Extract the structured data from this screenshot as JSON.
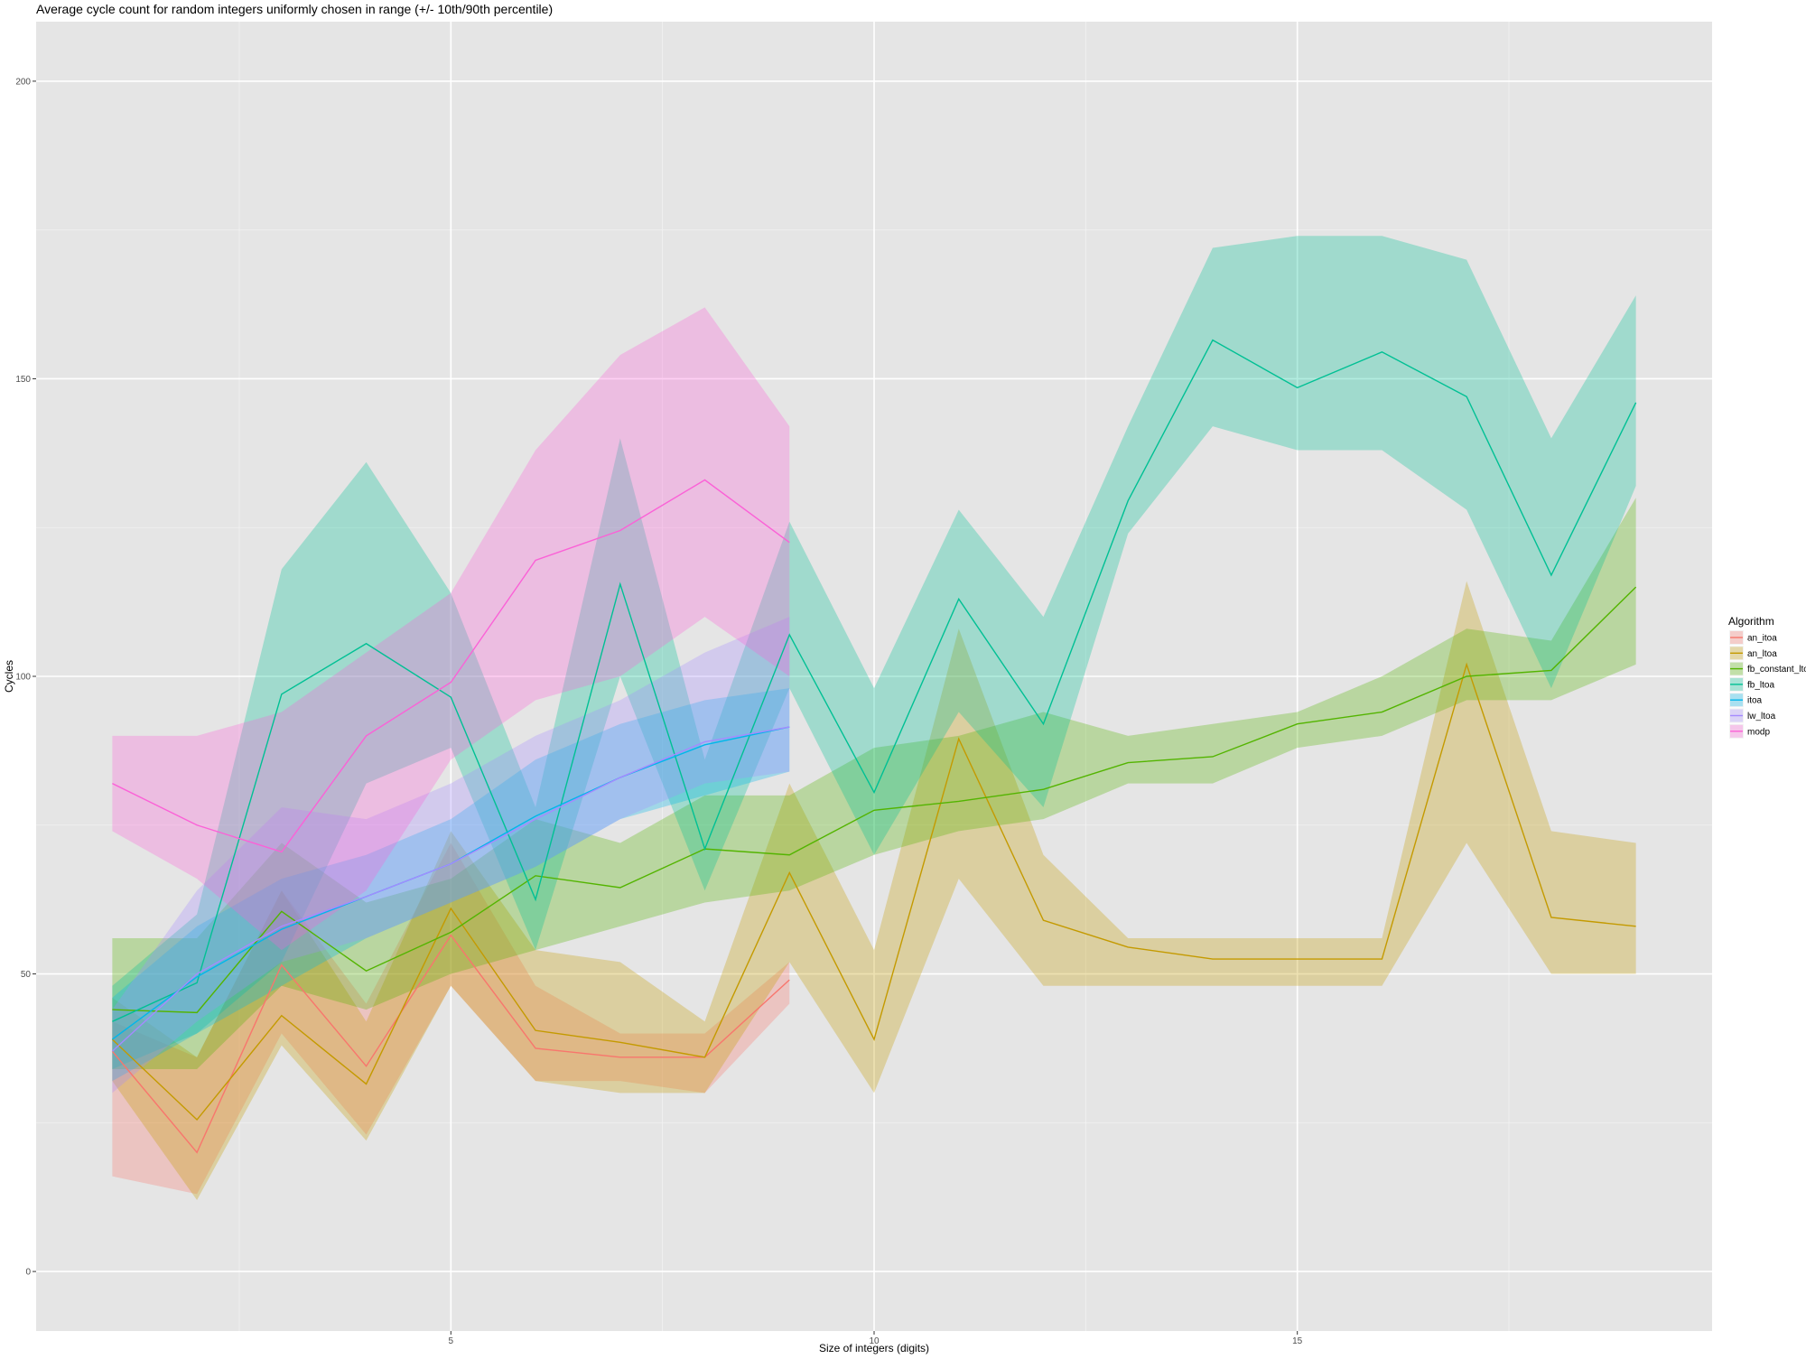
{
  "chart_data": {
    "type": "area",
    "title": "Average cycle count for random integers uniformly chosen in range (+/- 10th/90th percentile)",
    "xlabel": "Size of integers (digits)",
    "ylabel": "Cycles",
    "xlim": [
      0.1,
      19.9
    ],
    "ylim": [
      -10,
      210
    ],
    "x_ticks": [
      5,
      10,
      15
    ],
    "y_ticks": [
      0,
      50,
      100,
      150,
      200
    ],
    "grid": true,
    "legend": {
      "title": "Algorithm",
      "placement": "right"
    },
    "series": [
      {
        "name": "an_itoa",
        "color": "#F8766D",
        "x": [
          1,
          2,
          3,
          4,
          5,
          6,
          7,
          8,
          9
        ],
        "mean": [
          37,
          20,
          51.5,
          34.5,
          56.5,
          37.5,
          36,
          36,
          49
        ],
        "p10": [
          16,
          13,
          40,
          23,
          48,
          32,
          32,
          30,
          45
        ],
        "p90": [
          42,
          36,
          64,
          45,
          72,
          48,
          40,
          40,
          52
        ]
      },
      {
        "name": "an_ltoa",
        "color": "#C49A00",
        "x": [
          1,
          2,
          3,
          4,
          5,
          6,
          7,
          8,
          9,
          10,
          11,
          12,
          13,
          14,
          15,
          16,
          17,
          18,
          19
        ],
        "mean": [
          39,
          25.5,
          43,
          31.5,
          61,
          40.5,
          38.5,
          36,
          67,
          39,
          89.5,
          59,
          54.5,
          52.5,
          52.5,
          52.5,
          102,
          59.5,
          58
        ],
        "p10": [
          32,
          12,
          38,
          22,
          48,
          32,
          30,
          30,
          52,
          30,
          66,
          48,
          48,
          48,
          48,
          48,
          72,
          50,
          50
        ],
        "p90": [
          46,
          36,
          64,
          42,
          74,
          54,
          52,
          42,
          82,
          54,
          108,
          70,
          56,
          56,
          56,
          56,
          116,
          74,
          72
        ]
      },
      {
        "name": "fb_constant_ltoa",
        "color": "#53B400",
        "x": [
          1,
          2,
          3,
          4,
          5,
          6,
          7,
          8,
          9,
          10,
          11,
          12,
          13,
          14,
          15,
          16,
          17,
          18,
          19
        ],
        "mean": [
          44,
          43.5,
          60.5,
          50.5,
          57,
          66.5,
          64.5,
          71,
          70,
          77.5,
          79,
          81,
          85.5,
          86.5,
          92,
          94,
          100,
          101,
          115
        ],
        "p10": [
          34,
          34,
          48,
          44,
          50,
          54,
          58,
          62,
          64,
          70,
          74,
          76,
          82,
          82,
          88,
          90,
          96,
          96,
          102
        ],
        "p90": [
          56,
          56,
          72,
          62,
          66,
          76,
          72,
          80,
          80,
          88,
          90,
          94,
          90,
          92,
          94,
          100,
          108,
          106,
          130
        ]
      },
      {
        "name": "fb_ltoa",
        "color": "#00C094",
        "x": [
          1,
          2,
          3,
          4,
          5,
          6,
          7,
          8,
          9,
          10,
          11,
          12,
          13,
          14,
          15,
          16,
          17,
          18,
          19
        ],
        "mean": [
          42,
          48.5,
          97,
          105.5,
          96.5,
          62.5,
          115.5,
          71,
          107,
          80.5,
          113,
          92,
          129.5,
          156.5,
          148.5,
          154.5,
          147,
          117,
          146
        ],
        "p10": [
          34,
          40,
          52,
          82,
          88,
          54,
          100,
          64,
          98,
          70,
          94,
          78,
          124,
          142,
          138,
          138,
          128,
          98,
          132
        ],
        "p90": [
          48,
          60,
          118,
          136,
          114,
          78,
          140,
          86,
          126,
          98,
          128,
          110,
          142,
          172,
          174,
          174,
          170,
          140,
          164
        ]
      },
      {
        "name": "itoa",
        "color": "#00B6EB",
        "x": [
          1,
          2,
          3,
          4,
          5,
          6,
          7,
          8,
          9
        ],
        "mean": [
          39,
          49.5,
          57.5,
          63,
          68.5,
          76.5,
          83,
          88.5,
          91.5
        ],
        "p10": [
          32,
          40,
          48,
          56,
          62,
          68,
          76,
          80,
          84
        ],
        "p90": [
          46,
          58,
          66,
          70,
          76,
          86,
          92,
          96,
          98
        ]
      },
      {
        "name": "lw_ltoa",
        "color": "#A58AFF",
        "x": [
          1,
          2,
          3,
          4,
          5,
          6,
          7,
          8,
          9
        ],
        "mean": [
          37,
          50,
          58,
          63,
          68.5,
          76,
          83,
          89,
          91.5
        ],
        "p10": [
          30,
          42,
          52,
          56,
          62,
          68,
          76,
          82,
          84
        ],
        "p90": [
          44,
          64,
          78,
          76,
          82,
          90,
          96,
          104,
          110
        ]
      },
      {
        "name": "modp",
        "color": "#FB61D7",
        "x": [
          1,
          2,
          3,
          4,
          5,
          6,
          7,
          8,
          9
        ],
        "mean": [
          82,
          75,
          70.5,
          90,
          99,
          119.5,
          124.5,
          133,
          122.5
        ],
        "p10": [
          74,
          66,
          54,
          64,
          86,
          96,
          100,
          110,
          100
        ],
        "p90": [
          90,
          90,
          94,
          104,
          114,
          138,
          154,
          162,
          142
        ]
      }
    ]
  }
}
